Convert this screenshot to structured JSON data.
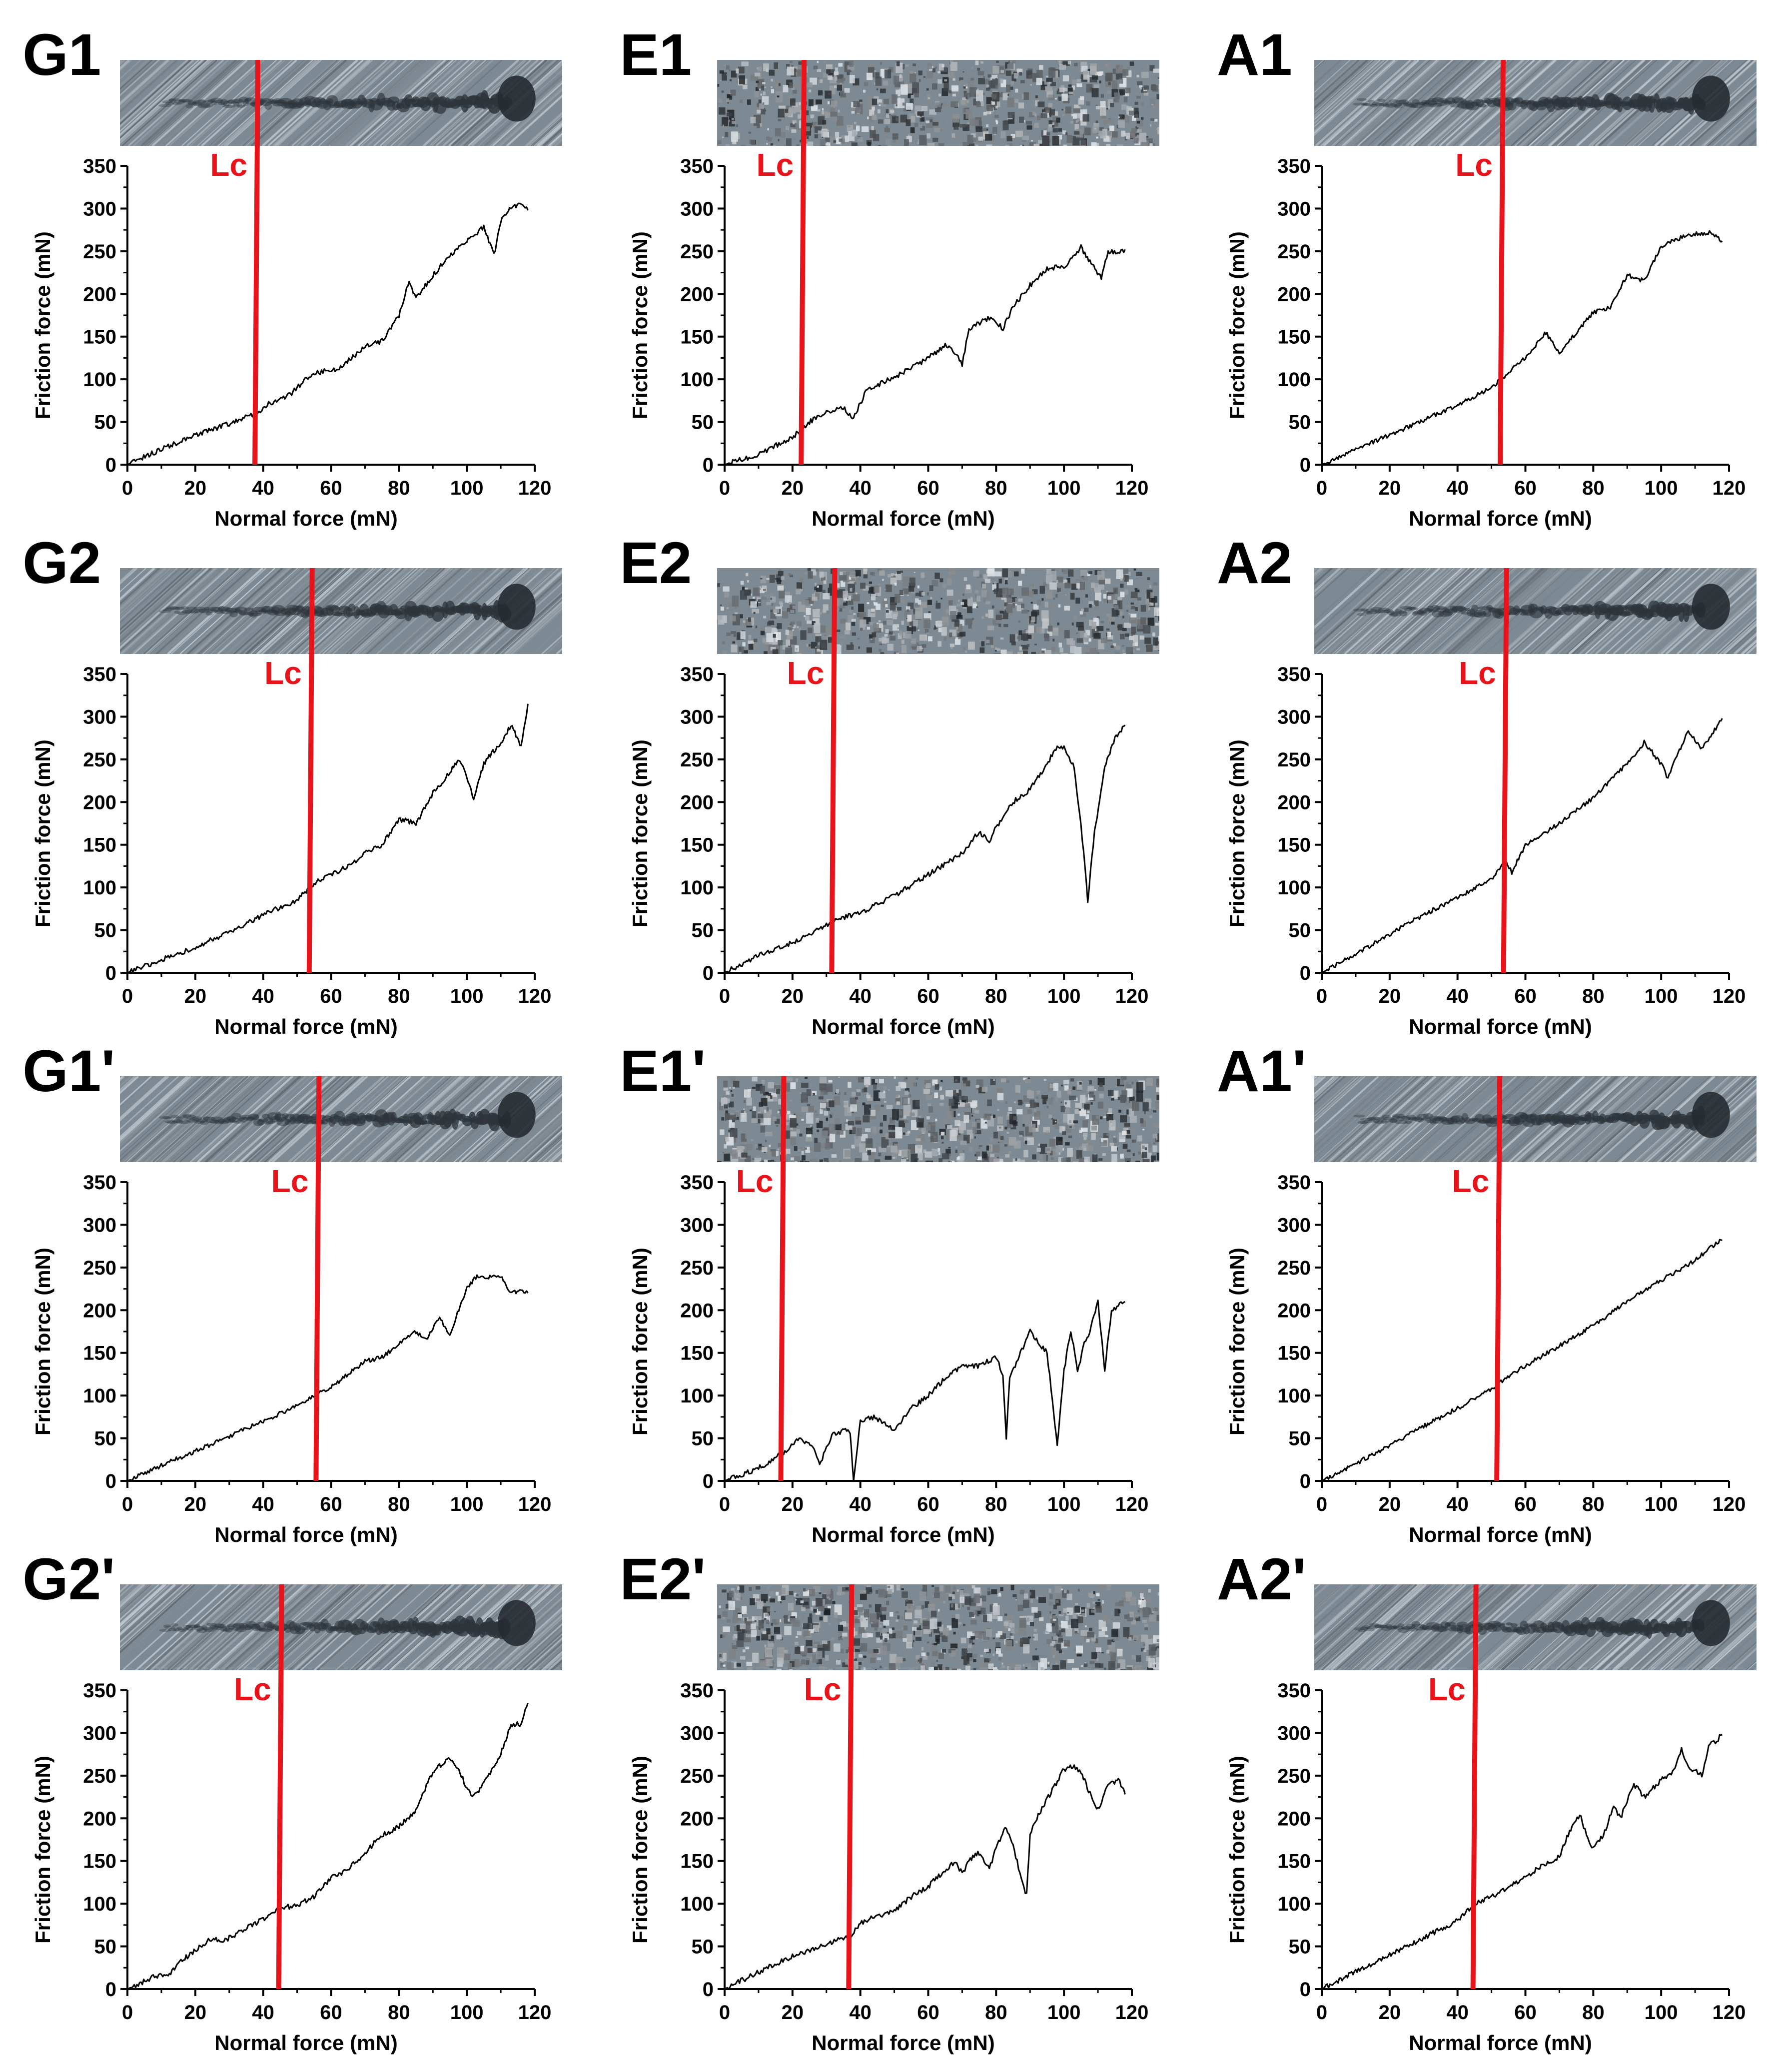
{
  "figure": {
    "colors": {
      "curve": "#000000",
      "lc_line": "#e8141b",
      "axis": "#000000",
      "text": "#000000",
      "strip_dark": "#2a3238",
      "strip_light": "#9aa7b2"
    }
  },
  "chart_data": [
    {
      "type": "line",
      "panel_label": "G1",
      "xlabel": "Normal force (mN)",
      "ylabel": "Friction force (mN)",
      "xlim": [
        0,
        120
      ],
      "ylim": [
        0,
        350
      ],
      "xticks": [
        "0",
        "20",
        "40",
        "60",
        "80",
        "100",
        "120"
      ],
      "yticks": [
        "0",
        "50",
        "100",
        "150",
        "200",
        "250",
        "300",
        "350"
      ],
      "lc_label": "Lc",
      "lc": 38,
      "noise": 3,
      "series": [
        {
          "name": "friction",
          "x": [
            0,
            10,
            20,
            30,
            38,
            42,
            48,
            52,
            56,
            62,
            66,
            70,
            75,
            80,
            83,
            85,
            87,
            90,
            95,
            100,
            105,
            108,
            110,
            113,
            116,
            118
          ],
          "y": [
            0,
            18,
            34,
            48,
            60,
            72,
            82,
            98,
            108,
            112,
            125,
            138,
            145,
            175,
            215,
            195,
            205,
            222,
            245,
            262,
            278,
            245,
            285,
            300,
            305,
            298
          ]
        }
      ]
    },
    {
      "type": "line",
      "panel_label": "E1",
      "xlabel": "Normal force (mN)",
      "ylabel": "Friction force (mN)",
      "xlim": [
        0,
        120
      ],
      "ylim": [
        0,
        350
      ],
      "xticks": [
        "0",
        "20",
        "40",
        "60",
        "80",
        "100",
        "120"
      ],
      "yticks": [
        "0",
        "50",
        "100",
        "150",
        "200",
        "250",
        "300",
        "350"
      ],
      "lc_label": "Lc",
      "lc": 23,
      "noise": 3,
      "series": [
        {
          "name": "friction",
          "x": [
            0,
            10,
            20,
            25,
            30,
            35,
            38,
            42,
            50,
            60,
            65,
            68,
            70,
            72,
            78,
            82,
            85,
            90,
            95,
            100,
            105,
            108,
            111,
            113,
            116,
            118
          ],
          "y": [
            0,
            12,
            32,
            50,
            62,
            66,
            55,
            88,
            102,
            125,
            140,
            132,
            118,
            160,
            172,
            160,
            185,
            210,
            230,
            232,
            255,
            235,
            220,
            250,
            248,
            252
          ]
        }
      ]
    },
    {
      "type": "line",
      "panel_label": "A1",
      "xlabel": "Normal force (mN)",
      "ylabel": "Friction force (mN)",
      "xlim": [
        0,
        120
      ],
      "ylim": [
        0,
        350
      ],
      "xticks": [
        "0",
        "20",
        "40",
        "60",
        "80",
        "100",
        "120"
      ],
      "yticks": [
        "0",
        "50",
        "100",
        "150",
        "200",
        "250",
        "300",
        "350"
      ],
      "lc_label": "Lc",
      "lc": 53,
      "noise": 2.5,
      "series": [
        {
          "name": "friction",
          "x": [
            0,
            10,
            20,
            30,
            40,
            50,
            55,
            60,
            63,
            66,
            70,
            75,
            80,
            85,
            90,
            95,
            100,
            105,
            110,
            115,
            118
          ],
          "y": [
            0,
            18,
            35,
            52,
            70,
            90,
            108,
            125,
            140,
            155,
            130,
            155,
            178,
            185,
            222,
            215,
            255,
            265,
            270,
            272,
            262
          ]
        }
      ]
    },
    {
      "type": "line",
      "panel_label": "G2",
      "xlabel": "Normal force (mN)",
      "ylabel": "Friction force (mN)",
      "xlim": [
        0,
        120
      ],
      "ylim": [
        0,
        350
      ],
      "xticks": [
        "0",
        "20",
        "40",
        "60",
        "80",
        "100",
        "120"
      ],
      "yticks": [
        "0",
        "50",
        "100",
        "150",
        "200",
        "250",
        "300",
        "350"
      ],
      "lc_label": "Lc",
      "lc": 54,
      "noise": 3,
      "series": [
        {
          "name": "friction",
          "x": [
            0,
            10,
            20,
            30,
            40,
            50,
            55,
            60,
            65,
            70,
            75,
            80,
            85,
            90,
            95,
            98,
            102,
            105,
            110,
            113,
            116,
            118
          ],
          "y": [
            0,
            15,
            30,
            48,
            68,
            85,
            105,
            115,
            125,
            140,
            150,
            180,
            175,
            210,
            235,
            250,
            205,
            245,
            270,
            290,
            265,
            315
          ]
        }
      ]
    },
    {
      "type": "line",
      "panel_label": "E2",
      "xlabel": "Normal force (mN)",
      "ylabel": "Friction force (mN)",
      "xlim": [
        0,
        120
      ],
      "ylim": [
        0,
        350
      ],
      "xticks": [
        "0",
        "20",
        "40",
        "60",
        "80",
        "100",
        "120"
      ],
      "yticks": [
        "0",
        "50",
        "100",
        "150",
        "200",
        "250",
        "300",
        "350"
      ],
      "lc_label": "Lc",
      "lc": 32,
      "noise": 3,
      "series": [
        {
          "name": "friction",
          "x": [
            0,
            10,
            20,
            30,
            35,
            40,
            50,
            60,
            70,
            75,
            78,
            80,
            85,
            90,
            95,
            98,
            100,
            103,
            105,
            107,
            109,
            112,
            115,
            118
          ],
          "y": [
            0,
            20,
            35,
            55,
            65,
            70,
            90,
            115,
            140,
            165,
            155,
            170,
            200,
            215,
            245,
            265,
            265,
            240,
            175,
            85,
            165,
            240,
            275,
            290
          ]
        }
      ]
    },
    {
      "type": "line",
      "panel_label": "A2",
      "xlabel": "Normal force (mN)",
      "ylabel": "Friction force (mN)",
      "xlim": [
        0,
        120
      ],
      "ylim": [
        0,
        350
      ],
      "xticks": [
        "0",
        "20",
        "40",
        "60",
        "80",
        "100",
        "120"
      ],
      "yticks": [
        "0",
        "50",
        "100",
        "150",
        "200",
        "250",
        "300",
        "350"
      ],
      "lc_label": "Lc",
      "lc": 54,
      "noise": 2.5,
      "series": [
        {
          "name": "friction",
          "x": [
            0,
            10,
            20,
            30,
            40,
            50,
            54,
            56,
            60,
            65,
            70,
            80,
            90,
            95,
            100,
            102,
            105,
            108,
            112,
            115,
            118
          ],
          "y": [
            0,
            22,
            45,
            68,
            88,
            110,
            130,
            118,
            150,
            162,
            175,
            205,
            245,
            270,
            245,
            228,
            258,
            282,
            262,
            280,
            298
          ]
        }
      ]
    },
    {
      "type": "line",
      "panel_label": "G1'",
      "xlabel": "Normal force (mN)",
      "ylabel": "Friction force (mN)",
      "xlim": [
        0,
        120
      ],
      "ylim": [
        0,
        350
      ],
      "xticks": [
        "0",
        "20",
        "40",
        "60",
        "80",
        "100",
        "120"
      ],
      "yticks": [
        "0",
        "50",
        "100",
        "150",
        "200",
        "250",
        "300",
        "350"
      ],
      "lc_label": "Lc",
      "lc": 56,
      "noise": 2.5,
      "series": [
        {
          "name": "friction",
          "x": [
            0,
            10,
            20,
            30,
            40,
            50,
            56,
            60,
            65,
            70,
            75,
            80,
            85,
            88,
            92,
            95,
            98,
            100,
            103,
            106,
            110,
            113,
            116,
            118
          ],
          "y": [
            0,
            18,
            35,
            52,
            70,
            88,
            102,
            110,
            125,
            140,
            145,
            160,
            175,
            165,
            192,
            170,
            205,
            225,
            240,
            238,
            240,
            220,
            222,
            220
          ]
        }
      ]
    },
    {
      "type": "line",
      "panel_label": "E1'",
      "xlabel": "Normal force (mN)",
      "ylabel": "Friction force (mN)",
      "xlim": [
        0,
        120
      ],
      "ylim": [
        0,
        350
      ],
      "xticks": [
        "0",
        "20",
        "40",
        "60",
        "80",
        "100",
        "120"
      ],
      "yticks": [
        "0",
        "50",
        "100",
        "150",
        "200",
        "250",
        "300",
        "350"
      ],
      "lc_label": "Lc",
      "lc": 17,
      "noise": 3,
      "series": [
        {
          "name": "friction",
          "x": [
            0,
            10,
            17,
            22,
            26,
            28,
            32,
            36,
            37,
            38,
            40,
            44,
            50,
            55,
            60,
            65,
            70,
            75,
            80,
            82,
            83,
            84,
            86,
            90,
            95,
            97,
            98,
            100,
            102,
            104,
            106,
            108,
            110,
            112,
            114,
            116,
            118
          ],
          "y": [
            0,
            15,
            32,
            50,
            40,
            20,
            55,
            60,
            55,
            0,
            70,
            75,
            60,
            85,
            100,
            120,
            135,
            135,
            145,
            125,
            50,
            120,
            140,
            175,
            150,
            80,
            40,
            130,
            175,
            130,
            160,
            180,
            210,
            130,
            200,
            205,
            210
          ]
        }
      ]
    },
    {
      "type": "line",
      "panel_label": "A1'",
      "xlabel": "Normal force (mN)",
      "ylabel": "Friction force (mN)",
      "xlim": [
        0,
        120
      ],
      "ylim": [
        0,
        350
      ],
      "xticks": [
        "0",
        "20",
        "40",
        "60",
        "80",
        "100",
        "120"
      ],
      "yticks": [
        "0",
        "50",
        "100",
        "150",
        "200",
        "250",
        "300",
        "350"
      ],
      "lc_label": "Lc",
      "lc": 52,
      "noise": 2.5,
      "series": [
        {
          "name": "friction",
          "x": [
            0,
            10,
            20,
            30,
            40,
            50,
            60,
            70,
            80,
            90,
            100,
            110,
            115,
            118
          ],
          "y": [
            0,
            20,
            42,
            64,
            85,
            108,
            135,
            158,
            182,
            210,
            235,
            258,
            275,
            282
          ]
        }
      ]
    },
    {
      "type": "line",
      "panel_label": "G2'",
      "xlabel": "Normal force (mN)",
      "ylabel": "Friction force (mN)",
      "xlim": [
        0,
        120
      ],
      "ylim": [
        0,
        350
      ],
      "xticks": [
        "0",
        "20",
        "40",
        "60",
        "80",
        "100",
        "120"
      ],
      "yticks": [
        "0",
        "50",
        "100",
        "150",
        "200",
        "250",
        "300",
        "350"
      ],
      "lc_label": "Lc",
      "lc": 45,
      "noise": 3,
      "series": [
        {
          "name": "friction",
          "x": [
            0,
            10,
            12,
            15,
            20,
            25,
            28,
            30,
            40,
            45,
            50,
            55,
            60,
            65,
            70,
            75,
            80,
            85,
            90,
            95,
            98,
            100,
            102,
            105,
            110,
            113,
            116,
            118
          ],
          "y": [
            0,
            18,
            15,
            30,
            45,
            60,
            55,
            60,
            82,
            95,
            98,
            108,
            130,
            140,
            160,
            180,
            190,
            210,
            255,
            272,
            255,
            235,
            225,
            240,
            275,
            310,
            310,
            335
          ]
        }
      ]
    },
    {
      "type": "line",
      "panel_label": "E2'",
      "xlabel": "Normal force (mN)",
      "ylabel": "Friction force (mN)",
      "xlim": [
        0,
        120
      ],
      "ylim": [
        0,
        350
      ],
      "xticks": [
        "0",
        "20",
        "40",
        "60",
        "80",
        "100",
        "120"
      ],
      "yticks": [
        "0",
        "50",
        "100",
        "150",
        "200",
        "250",
        "300",
        "350"
      ],
      "lc_label": "Lc",
      "lc": 37,
      "noise": 3,
      "series": [
        {
          "name": "friction",
          "x": [
            0,
            10,
            20,
            30,
            35,
            37,
            40,
            50,
            55,
            60,
            65,
            68,
            70,
            72,
            75,
            78,
            80,
            83,
            85,
            87,
            89,
            90,
            92,
            95,
            100,
            103,
            105,
            108,
            110,
            113,
            116,
            118
          ],
          "y": [
            0,
            20,
            38,
            52,
            60,
            62,
            78,
            92,
            108,
            120,
            140,
            150,
            135,
            150,
            160,
            140,
            165,
            190,
            170,
            135,
            110,
            180,
            200,
            222,
            258,
            260,
            255,
            225,
            210,
            240,
            245,
            228
          ]
        }
      ]
    },
    {
      "type": "line",
      "panel_label": "A2'",
      "xlabel": "Normal force (mN)",
      "ylabel": "Friction force (mN)",
      "xlim": [
        0,
        120
      ],
      "ylim": [
        0,
        350
      ],
      "xticks": [
        "0",
        "20",
        "40",
        "60",
        "80",
        "100",
        "120"
      ],
      "yticks": [
        "0",
        "50",
        "100",
        "150",
        "200",
        "250",
        "300",
        "350"
      ],
      "lc_label": "Lc",
      "lc": 45,
      "noise": 3,
      "series": [
        {
          "name": "friction",
          "x": [
            0,
            10,
            20,
            30,
            40,
            45,
            50,
            55,
            60,
            65,
            70,
            73,
            76,
            78,
            80,
            83,
            86,
            88,
            92,
            95,
            100,
            103,
            106,
            108,
            112,
            114,
            116,
            118
          ],
          "y": [
            0,
            20,
            40,
            60,
            80,
            100,
            108,
            120,
            130,
            145,
            155,
            185,
            205,
            180,
            165,
            180,
            215,
            200,
            240,
            225,
            245,
            250,
            280,
            260,
            250,
            285,
            290,
            298
          ]
        }
      ]
    }
  ]
}
